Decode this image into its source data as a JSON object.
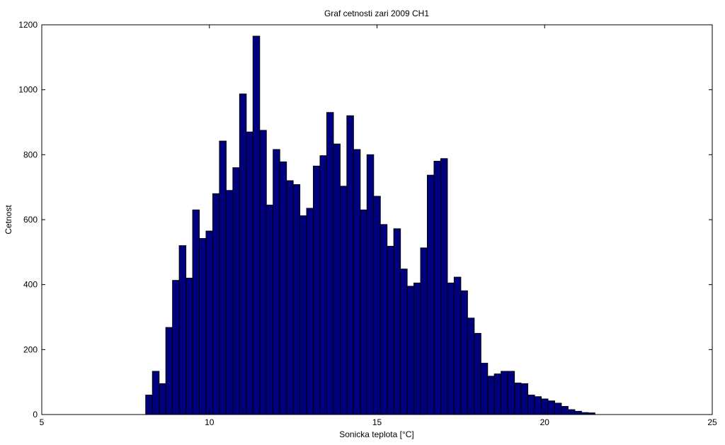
{
  "chart_data": {
    "type": "bar",
    "title": "Graf cetnosti zari 2009 CH1",
    "xlabel": "Sonicka teplota [°C]",
    "ylabel": "Cetnost",
    "xlim": [
      5,
      25
    ],
    "ylim": [
      0,
      1200
    ],
    "xticks": [
      5,
      10,
      15,
      20,
      25
    ],
    "yticks": [
      0,
      200,
      400,
      600,
      800,
      1000,
      1200
    ],
    "grid": false,
    "bar_color": "#00007f",
    "bin_width": 0.2,
    "x": [
      8.2,
      8.4,
      8.6,
      8.8,
      9.0,
      9.2,
      9.4,
      9.6,
      9.8,
      10.0,
      10.2,
      10.4,
      10.6,
      10.8,
      11.0,
      11.2,
      11.4,
      11.6,
      11.8,
      12.0,
      12.2,
      12.4,
      12.6,
      12.8,
      13.0,
      13.2,
      13.4,
      13.6,
      13.8,
      14.0,
      14.2,
      14.4,
      14.6,
      14.8,
      15.0,
      15.2,
      15.4,
      15.6,
      15.8,
      16.0,
      16.2,
      16.4,
      16.6,
      16.8,
      17.0,
      17.2,
      17.4,
      17.6,
      17.8,
      18.0,
      18.2,
      18.4,
      18.6,
      18.8,
      19.0,
      19.2,
      19.4,
      19.6,
      19.8,
      20.0,
      20.2,
      20.4,
      20.6,
      20.8,
      21.0,
      21.2,
      21.4
    ],
    "values": [
      60,
      133,
      95,
      268,
      413,
      520,
      420,
      630,
      542,
      565,
      680,
      842,
      690,
      760,
      987,
      870,
      1165,
      875,
      645,
      816,
      778,
      720,
      708,
      612,
      635,
      765,
      797,
      930,
      833,
      703,
      920,
      816,
      630,
      800,
      672,
      585,
      518,
      572,
      448,
      395,
      405,
      513,
      737,
      780,
      788,
      405,
      423,
      381,
      297,
      250,
      158,
      118,
      125,
      133,
      133,
      97,
      95,
      60,
      55,
      48,
      42,
      35,
      25,
      15,
      10,
      6,
      5
    ]
  }
}
